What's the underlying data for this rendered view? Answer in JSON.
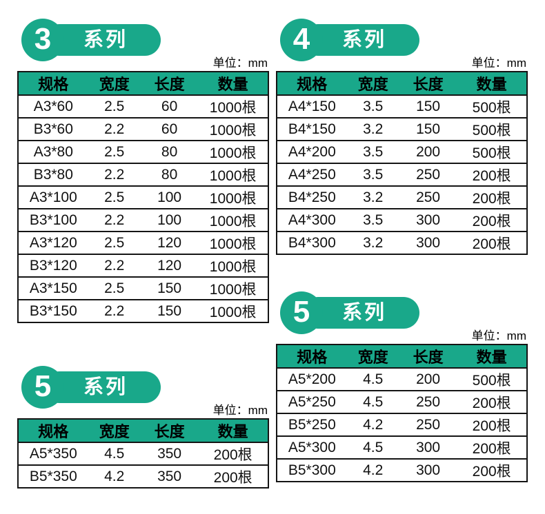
{
  "unit_label": "单位：mm",
  "series_suffix": "系列",
  "table_headers": [
    "规格",
    "宽度",
    "长度",
    "数量"
  ],
  "colors": {
    "accent": "#19a88a",
    "table_border": "#141414"
  },
  "sections": {
    "series3": {
      "badge_number": "3",
      "rows": [
        [
          "A3*60",
          "2.5",
          "60",
          "1000根"
        ],
        [
          "B3*60",
          "2.2",
          "60",
          "1000根"
        ],
        [
          "A3*80",
          "2.5",
          "80",
          "1000根"
        ],
        [
          "B3*80",
          "2.2",
          "80",
          "1000根"
        ],
        [
          "A3*100",
          "2.5",
          "100",
          "1000根"
        ],
        [
          "B3*100",
          "2.2",
          "100",
          "1000根"
        ],
        [
          "A3*120",
          "2.5",
          "120",
          "1000根"
        ],
        [
          "B3*120",
          "2.2",
          "120",
          "1000根"
        ],
        [
          "A3*150",
          "2.5",
          "150",
          "1000根"
        ],
        [
          "B3*150",
          "2.2",
          "150",
          "1000根"
        ]
      ]
    },
    "series4": {
      "badge_number": "4",
      "rows": [
        [
          "A4*150",
          "3.5",
          "150",
          "500根"
        ],
        [
          "B4*150",
          "3.2",
          "150",
          "500根"
        ],
        [
          "A4*200",
          "3.5",
          "200",
          "500根"
        ],
        [
          "A4*250",
          "3.5",
          "250",
          "200根"
        ],
        [
          "B4*250",
          "3.2",
          "250",
          "200根"
        ],
        [
          "A4*300",
          "3.5",
          "300",
          "200根"
        ],
        [
          "B4*300",
          "3.2",
          "300",
          "200根"
        ]
      ]
    },
    "series5_right": {
      "badge_number": "5",
      "rows": [
        [
          "A5*200",
          "4.5",
          "200",
          "500根"
        ],
        [
          "A5*250",
          "4.5",
          "250",
          "200根"
        ],
        [
          "B5*250",
          "4.2",
          "250",
          "200根"
        ],
        [
          "A5*300",
          "4.5",
          "300",
          "200根"
        ],
        [
          "B5*300",
          "4.2",
          "300",
          "200根"
        ]
      ]
    },
    "series5_left": {
      "badge_number": "5",
      "rows": [
        [
          "A5*350",
          "4.5",
          "350",
          "200根"
        ],
        [
          "B5*350",
          "4.2",
          "350",
          "200根"
        ]
      ]
    }
  }
}
